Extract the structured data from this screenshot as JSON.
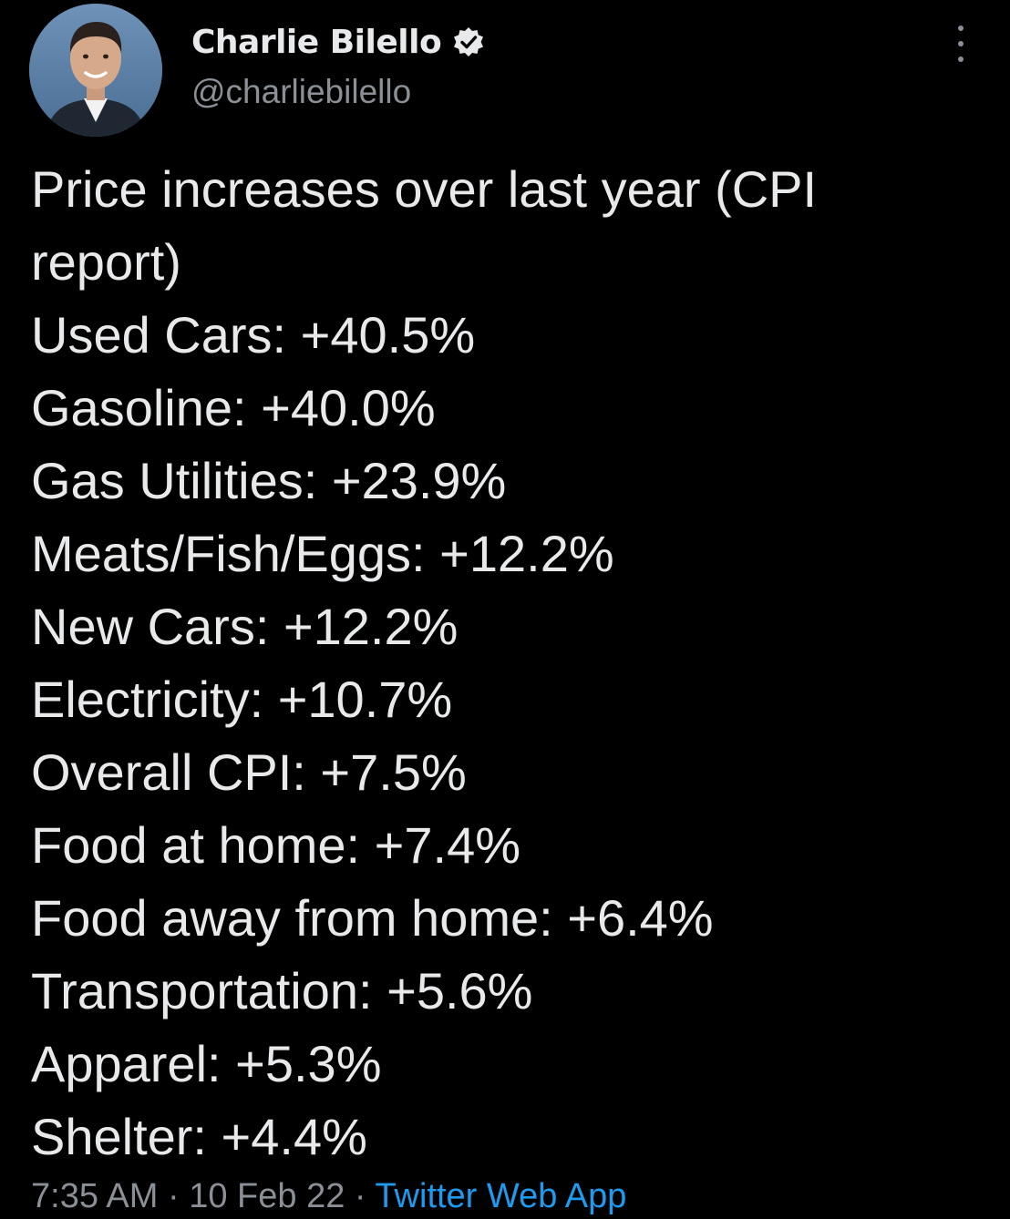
{
  "author": {
    "display_name": "Charlie Bilello",
    "handle": "@charliebilello"
  },
  "tweet": {
    "lines": [
      "Price increases over last year (CPI",
      "report)",
      "Used Cars: +40.5%",
      "Gasoline: +40.0%",
      "Gas Utilities: +23.9%",
      "Meats/Fish/Eggs: +12.2%",
      "New Cars: +12.2%",
      "Electricity: +10.7%",
      "Overall CPI: +7.5%",
      "Food at home: +7.4%",
      "Food away from home: +6.4%",
      "Transportation: +5.6%",
      "Apparel: +5.3%",
      "Shelter: +4.4%"
    ]
  },
  "meta": {
    "time": "7:35 AM",
    "separator": "·",
    "date": "10 Feb 22",
    "source": "Twitter Web App"
  },
  "icons": {
    "verified": "verified-badge-icon",
    "more": "more-options-icon"
  },
  "colors": {
    "background": "#000000",
    "text": "#e7e9ea",
    "muted": "#8b9096",
    "link": "#1d9bf0"
  }
}
